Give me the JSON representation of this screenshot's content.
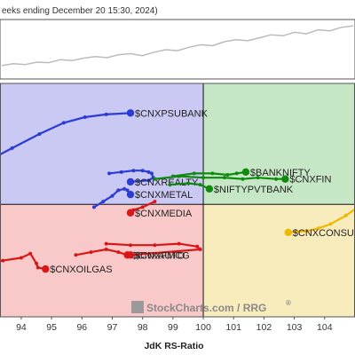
{
  "chart_data": {
    "type": "scatter",
    "subtitle": "eeks ending December 20 15:30, 2024)",
    "xlabel": "JdK RS-Ratio",
    "ylabel": "",
    "watermark": "StockCharts.com / RRG",
    "watermark_mark": "®",
    "xlim": [
      93.3,
      105
    ],
    "ylim": [
      96,
      104.3
    ],
    "x_ticks": [
      94,
      95,
      96,
      97,
      98,
      99,
      100,
      101,
      102,
      103,
      104
    ],
    "x_tick_labels": [
      "94",
      "95",
      "96",
      "97",
      "98",
      "99",
      "100",
      "101",
      "102",
      "103",
      "104"
    ],
    "center": [
      100,
      100
    ],
    "quadrant_colors": {
      "improving": "#c9c9f3",
      "leading": "#c6e7c6",
      "lagging": "#f9c8c8",
      "weakening": "#f9ecbc"
    },
    "benchmark_line": {
      "color": "#bbbbbb",
      "values": [
        0.18,
        0.22,
        0.2,
        0.25,
        0.24,
        0.3,
        0.28,
        0.33,
        0.36,
        0.34,
        0.4,
        0.42,
        0.38,
        0.45,
        0.5,
        0.48,
        0.55,
        0.6,
        0.58,
        0.66,
        0.7,
        0.68,
        0.74,
        0.8,
        0.78,
        0.85,
        0.82,
        0.9,
        0.88,
        0.95,
        0.98
      ]
    },
    "series": [
      {
        "name": "$CNXPSUBANK",
        "color": "#2a3bd6",
        "x": [
          93.0,
          93.7,
          94.6,
          95.4,
          96.1,
          96.8,
          97.6
        ],
        "y": [
          101.6,
          102.0,
          102.5,
          102.9,
          103.1,
          103.2,
          103.25
        ]
      },
      {
        "name": "$CNXREALTY",
        "color": "#2a3bd6",
        "x": [
          96.9,
          97.3,
          97.7,
          98.0,
          98.2,
          98.3,
          98.35,
          98.2,
          97.6
        ],
        "y": [
          101.1,
          101.15,
          101.2,
          101.2,
          101.15,
          101.1,
          100.95,
          100.85,
          100.8
        ]
      },
      {
        "name": "$CNXMETAL",
        "color": "#2a3bd6",
        "x": [
          96.4,
          96.7,
          97.0,
          97.2,
          97.4,
          97.5,
          97.6
        ],
        "y": [
          99.9,
          100.1,
          100.3,
          100.5,
          100.55,
          100.5,
          100.35
        ]
      },
      {
        "name": "$CNXMEDIA",
        "color": "#d81818",
        "x": [
          98.4,
          98.0,
          97.7,
          97.6
        ],
        "y": [
          100.1,
          99.9,
          99.8,
          99.7
        ]
      },
      {
        "name": "$BANKNIFTY",
        "color": "#0f8a0f",
        "x": [
          99.0,
          99.7,
          100.3,
          100.8,
          101.1,
          101.4
        ],
        "y": [
          101.0,
          101.1,
          101.1,
          101.05,
          101.1,
          101.15
        ]
      },
      {
        "name": "$CNXFIN",
        "color": "#0f8a0f",
        "x": [
          98.4,
          99.2,
          100.0,
          100.7,
          101.3,
          101.8,
          102.4,
          102.7
        ],
        "y": [
          100.9,
          101.0,
          100.95,
          100.95,
          100.9,
          100.95,
          100.9,
          100.9
        ]
      },
      {
        "name": "$NIFTYPVTBANK",
        "color": "#0f8a0f",
        "x": [
          98.9,
          99.5,
          99.9,
          100.2
        ],
        "y": [
          100.7,
          100.75,
          100.7,
          100.55
        ]
      },
      {
        "name": "$CNXAUTO",
        "color": "#d81818",
        "x": [
          95.8,
          96.3,
          96.8,
          97.2,
          97.5
        ],
        "y": [
          98.2,
          98.3,
          98.4,
          98.3,
          98.2
        ]
      },
      {
        "name": "$CNXFMCG",
        "color": "#d81818",
        "x": [
          96.8,
          97.6,
          98.4,
          99.2,
          99.8,
          99.9,
          97.6
        ],
        "y": [
          98.6,
          98.55,
          98.55,
          98.6,
          98.5,
          98.4,
          98.2
        ]
      },
      {
        "name": "$CNXOILGAS",
        "color": "#d81818",
        "x": [
          92.8,
          93.4,
          94.0,
          94.3,
          94.5,
          94.55,
          94.8
        ],
        "y": [
          97.9,
          98.0,
          98.1,
          98.25,
          97.9,
          97.75,
          97.7
        ]
      },
      {
        "name": "$CNXCONSUM",
        "color": "#f0b800",
        "x": [
          105.1,
          104.7,
          104.2,
          103.8,
          103.4,
          102.8
        ],
        "y": [
          99.9,
          99.6,
          99.3,
          99.15,
          99.05,
          99.0
        ]
      }
    ]
  }
}
